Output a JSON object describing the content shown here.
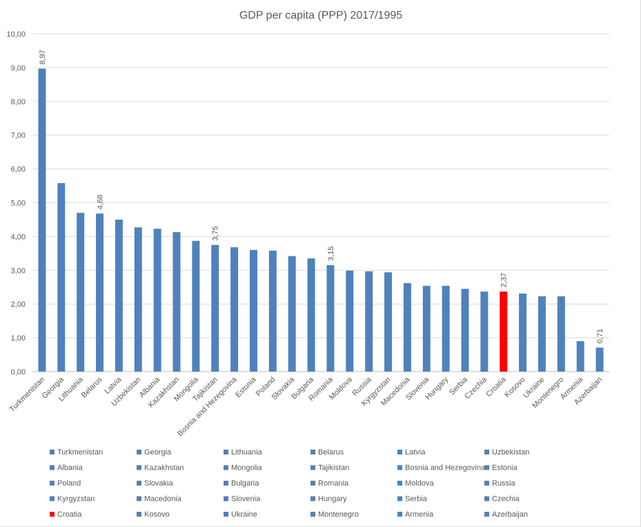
{
  "chart_data": {
    "type": "bar",
    "title": "GDP per capita (PPP) 2017/1995",
    "xlabel": "",
    "ylabel": "",
    "ylim": [
      0,
      10
    ],
    "yticks": [
      "0,00",
      "1,00",
      "2,00",
      "3,00",
      "4,00",
      "5,00",
      "6,00",
      "7,00",
      "8,00",
      "9,00",
      "10,00"
    ],
    "grid": true,
    "legend_placement": "bottom",
    "colors": {
      "default": "#4f81bd",
      "highlight": "#ff0000"
    },
    "categories": [
      "Turkmenistan",
      "Georgia",
      "Lithuania",
      "Belarus",
      "Latvia",
      "Uzbekistan",
      "Albania",
      "Kazakhstan",
      "Mongolia",
      "Tajikistan",
      "Bosnia and Hezegovina",
      "Estonia",
      "Poland",
      "Slovakia",
      "Bulgaria",
      "Romania",
      "Moldova",
      "Russia",
      "Kyrgyzstan",
      "Macedonia",
      "Slovenia",
      "Hungary",
      "Serbia",
      "Czechia",
      "Croatia",
      "Kosovo",
      "Ukraine",
      "Montenegro",
      "Armenia",
      "Azerbaijan"
    ],
    "values": [
      8.97,
      5.58,
      4.7,
      4.68,
      4.5,
      4.27,
      4.23,
      4.13,
      3.87,
      3.75,
      3.68,
      3.6,
      3.58,
      3.42,
      3.35,
      3.15,
      2.99,
      2.97,
      2.94,
      2.62,
      2.54,
      2.54,
      2.45,
      2.37,
      2.37,
      2.31,
      2.23,
      2.23,
      0.9,
      0.71
    ],
    "highlight": [
      "Croatia"
    ],
    "data_labels": {
      "Turkmenistan": "8,97",
      "Belarus": "4,68",
      "Tajikistan": "3,75",
      "Romania": "3,15",
      "Croatia": "2,37",
      "Azerbaijan": "0,71"
    }
  }
}
